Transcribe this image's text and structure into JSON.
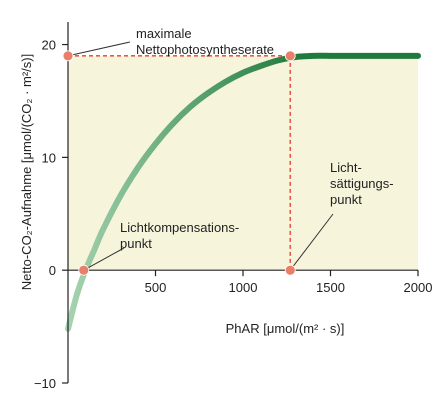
{
  "chart_data": {
    "type": "line",
    "title": "",
    "xlabel": "PhAR [μmol/(m² · s)]",
    "ylabel": "Netto-CO₂-Aufnahme [μmol/(CO₂ · m²/s)]",
    "xlim": [
      0,
      2000
    ],
    "ylim": [
      -10,
      22
    ],
    "x_ticks": [
      500,
      1000,
      1500,
      2000
    ],
    "y_ticks": [
      -10,
      0,
      10,
      20
    ],
    "grid": false,
    "series": [
      {
        "name": "",
        "x": [
          0,
          50,
          100,
          150,
          200,
          300,
          400,
          500,
          600,
          700,
          800,
          900,
          1000,
          1100,
          1200,
          1300,
          1400,
          1500,
          1600,
          1800,
          2000
        ],
        "y": [
          -5.2,
          -2.2,
          0.0,
          1.8,
          3.6,
          6.6,
          9.1,
          11.2,
          13.0,
          14.5,
          15.7,
          16.7,
          17.5,
          18.1,
          18.6,
          18.9,
          19.0,
          19.0,
          19.0,
          19.0,
          19.0
        ]
      }
    ],
    "shaded_region": {
      "x": [
        0,
        2000
      ],
      "y": [
        0,
        19
      ]
    },
    "annotations": [
      {
        "name": "max-rate",
        "lines": [
          "maximale",
          "Nettophotosyntheserate"
        ],
        "point": {
          "x": 0,
          "y": 19
        }
      },
      {
        "name": "saturation-point",
        "lines": [
          "Licht-",
          "sättigungs-",
          "punkt"
        ],
        "point": {
          "x": 1270,
          "y": 0
        }
      },
      {
        "name": "compensation-point",
        "lines": [
          "Lichtkompensations-",
          "punkt"
        ],
        "point": {
          "x": 90,
          "y": 0
        }
      }
    ],
    "guide_lines": [
      {
        "from": {
          "x": 0,
          "y": 19
        },
        "to": {
          "x": 1270,
          "y": 19
        }
      },
      {
        "from": {
          "x": 1270,
          "y": 19
        },
        "to": {
          "x": 1270,
          "y": 0
        }
      }
    ],
    "highlight_points": [
      {
        "x": 0,
        "y": 19
      },
      {
        "x": 1270,
        "y": 19
      },
      {
        "x": 1270,
        "y": 0
      },
      {
        "x": 90,
        "y": 0
      }
    ],
    "colors": {
      "fill": "#f6f5dc",
      "curve_dark": "#1f7a3c",
      "curve_light": "#a6d3b1",
      "guide": "#e8584a",
      "point": "#e87f68",
      "axis": "#222222"
    }
  }
}
